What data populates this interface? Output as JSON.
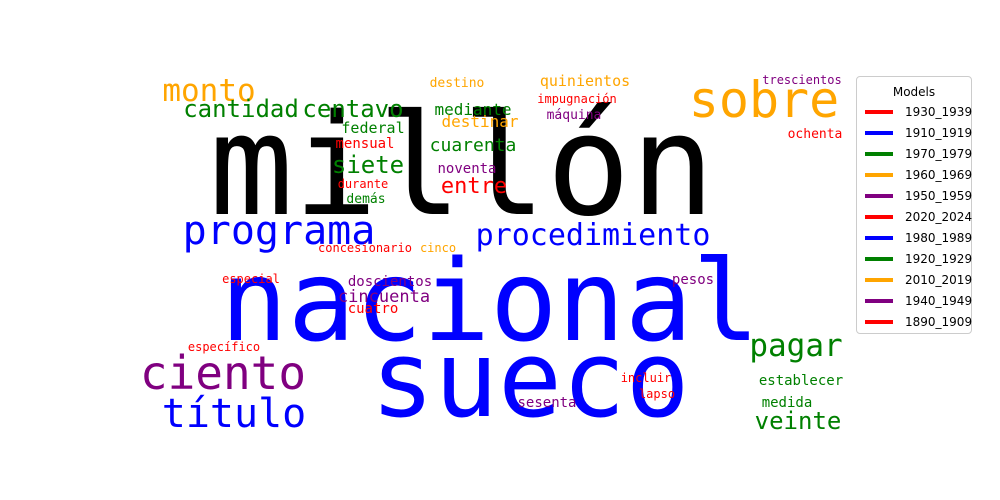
{
  "chart_data": {
    "type": "wordcloud",
    "legend": {
      "title": "Models",
      "placement": "right",
      "entries": [
        {
          "name": "1930_1939",
          "color": "#ff0000"
        },
        {
          "name": "1910_1919",
          "color": "#0000ff"
        },
        {
          "name": "1970_1979",
          "color": "#008000"
        },
        {
          "name": "1960_1969",
          "color": "#ffa500"
        },
        {
          "name": "1950_1959",
          "color": "#800080"
        },
        {
          "name": "2020_2024",
          "color": "#ff0000"
        },
        {
          "name": "1980_1989",
          "color": "#0000ff"
        },
        {
          "name": "1920_1929",
          "color": "#008000"
        },
        {
          "name": "2010_2019",
          "color": "#ffa500"
        },
        {
          "name": "1940_1949",
          "color": "#800080"
        },
        {
          "name": "1890_1909",
          "color": "#ff0000"
        }
      ]
    },
    "words": [
      {
        "text": "millón",
        "color": "#000000"
      },
      {
        "text": "nacional",
        "color": "#0000ff"
      },
      {
        "text": "sueco",
        "color": "#0000ff"
      },
      {
        "text": "sobre",
        "color": "#ffa500"
      },
      {
        "text": "programa",
        "color": "#0000ff"
      },
      {
        "text": "procedimiento",
        "color": "#0000ff"
      },
      {
        "text": "ciento",
        "color": "#800080"
      },
      {
        "text": "título",
        "color": "#0000ff"
      },
      {
        "text": "monto",
        "color": "#ffa500"
      },
      {
        "text": "cantidad",
        "color": "#008000"
      },
      {
        "text": "centavo",
        "color": "#008000"
      },
      {
        "text": "pagar",
        "color": "#008000"
      },
      {
        "text": "siete",
        "color": "#008000"
      },
      {
        "text": "entre",
        "color": "#ff0000"
      },
      {
        "text": "veinte",
        "color": "#008000"
      },
      {
        "text": "cuarenta",
        "color": "#008000"
      },
      {
        "text": "cincuenta",
        "color": "#800080"
      },
      {
        "text": "mediante",
        "color": "#008000"
      },
      {
        "text": "destinar",
        "color": "#ffa500"
      },
      {
        "text": "quinientos",
        "color": "#ffa500"
      },
      {
        "text": "federal",
        "color": "#008000"
      },
      {
        "text": "mensual",
        "color": "#ff0000"
      },
      {
        "text": "noventa",
        "color": "#800080"
      },
      {
        "text": "doscientos",
        "color": "#800080"
      },
      {
        "text": "cuatro",
        "color": "#ff0000"
      },
      {
        "text": "establecer",
        "color": "#008000"
      },
      {
        "text": "sesenta",
        "color": "#800080"
      },
      {
        "text": "medida",
        "color": "#008000"
      },
      {
        "text": "trescientos",
        "color": "#800080"
      },
      {
        "text": "ochenta",
        "color": "#ff0000"
      },
      {
        "text": "máquina",
        "color": "#800080"
      },
      {
        "text": "impugnación",
        "color": "#ff0000"
      },
      {
        "text": "destino",
        "color": "#ffa500"
      },
      {
        "text": "durante",
        "color": "#ff0000"
      },
      {
        "text": "demás",
        "color": "#008000"
      },
      {
        "text": "concesionario",
        "color": "#ff0000"
      },
      {
        "text": "cinco",
        "color": "#ffa500"
      },
      {
        "text": "especial",
        "color": "#ff0000"
      },
      {
        "text": "pesos",
        "color": "#800080"
      },
      {
        "text": "específico",
        "color": "#ff0000"
      },
      {
        "text": "incluir",
        "color": "#ff0000"
      },
      {
        "text": "lapso",
        "color": "#ff0000"
      }
    ]
  }
}
